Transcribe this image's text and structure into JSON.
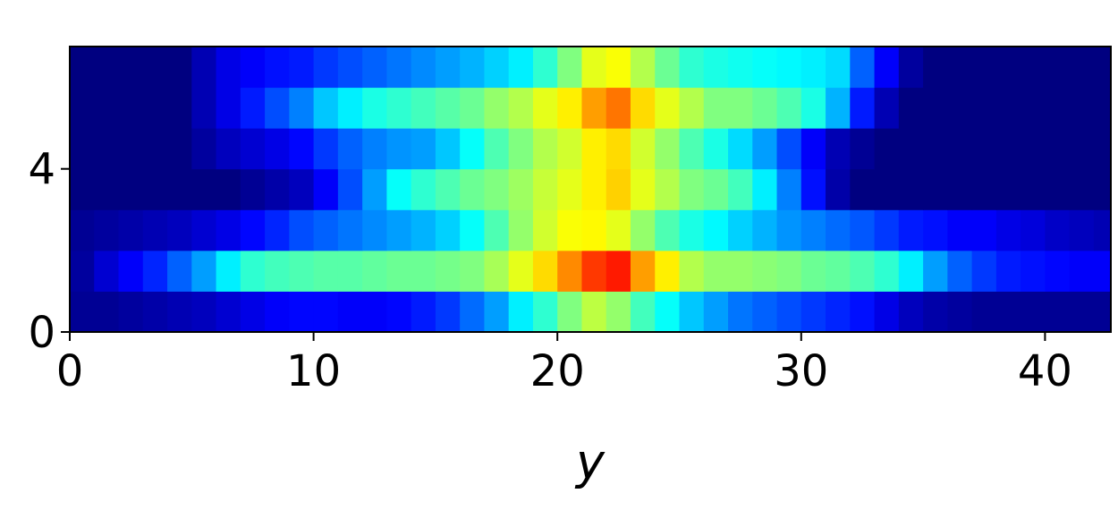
{
  "chart_data": {
    "type": "heatmap",
    "colormap": "jet",
    "clim": [
      0,
      1
    ],
    "xlabel": "y",
    "xlim": [
      0,
      42.7
    ],
    "ylim": [
      0,
      7
    ],
    "xticks": [
      0,
      10,
      20,
      30,
      40
    ],
    "yticks": [
      0,
      4
    ],
    "z": [
      [
        0.02,
        0.02,
        0.03,
        0.04,
        0.05,
        0.06,
        0.08,
        0.1,
        0.12,
        0.13,
        0.13,
        0.12,
        0.12,
        0.13,
        0.15,
        0.18,
        0.23,
        0.28,
        0.36,
        0.42,
        0.5,
        0.56,
        0.52,
        0.44,
        0.38,
        0.32,
        0.28,
        0.24,
        0.22,
        0.2,
        0.18,
        0.16,
        0.14,
        0.1,
        0.06,
        0.04,
        0.03,
        0.02,
        0.02,
        0.02,
        0.02,
        0.02,
        0.02
      ],
      [
        0.03,
        0.08,
        0.12,
        0.16,
        0.22,
        0.28,
        0.36,
        0.42,
        0.44,
        0.45,
        0.46,
        0.46,
        0.47,
        0.48,
        0.48,
        0.49,
        0.5,
        0.54,
        0.6,
        0.66,
        0.74,
        0.82,
        0.85,
        0.72,
        0.64,
        0.55,
        0.52,
        0.52,
        0.51,
        0.5,
        0.48,
        0.47,
        0.45,
        0.42,
        0.36,
        0.28,
        0.22,
        0.18,
        0.15,
        0.14,
        0.13,
        0.12,
        0.12
      ],
      [
        0.02,
        0.03,
        0.04,
        0.05,
        0.06,
        0.08,
        0.1,
        0.13,
        0.16,
        0.2,
        0.22,
        0.24,
        0.26,
        0.28,
        0.3,
        0.33,
        0.38,
        0.45,
        0.52,
        0.58,
        0.62,
        0.63,
        0.6,
        0.52,
        0.45,
        0.4,
        0.37,
        0.33,
        0.3,
        0.27,
        0.25,
        0.23,
        0.21,
        0.18,
        0.15,
        0.14,
        0.12,
        0.12,
        0.1,
        0.09,
        0.07,
        0.06,
        0.05
      ],
      [
        0,
        0,
        0,
        0,
        0,
        0,
        0,
        0.02,
        0.04,
        0.06,
        0.12,
        0.2,
        0.28,
        0.38,
        0.42,
        0.45,
        0.48,
        0.5,
        0.53,
        0.57,
        0.6,
        0.64,
        0.67,
        0.6,
        0.55,
        0.5,
        0.48,
        0.44,
        0.36,
        0.25,
        0.14,
        0.04,
        0,
        0,
        0,
        0,
        0,
        0,
        0,
        0,
        0,
        0,
        0
      ],
      [
        0,
        0,
        0,
        0,
        0,
        0.03,
        0.06,
        0.08,
        0.1,
        0.13,
        0.18,
        0.22,
        0.25,
        0.27,
        0.28,
        0.32,
        0.38,
        0.45,
        0.5,
        0.55,
        0.58,
        0.64,
        0.66,
        0.58,
        0.52,
        0.45,
        0.4,
        0.34,
        0.28,
        0.2,
        0.12,
        0.05,
        0.02,
        0,
        0,
        0,
        0,
        0,
        0,
        0,
        0,
        0,
        0
      ],
      [
        0,
        0,
        0,
        0,
        0,
        0.05,
        0.1,
        0.15,
        0.2,
        0.25,
        0.32,
        0.36,
        0.4,
        0.42,
        0.44,
        0.46,
        0.48,
        0.52,
        0.55,
        0.6,
        0.64,
        0.72,
        0.76,
        0.66,
        0.6,
        0.55,
        0.5,
        0.5,
        0.48,
        0.45,
        0.4,
        0.3,
        0.15,
        0.05,
        0,
        0,
        0,
        0,
        0,
        0,
        0,
        0,
        0
      ],
      [
        0,
        0,
        0,
        0,
        0,
        0.05,
        0.1,
        0.12,
        0.14,
        0.15,
        0.18,
        0.2,
        0.22,
        0.24,
        0.26,
        0.28,
        0.3,
        0.33,
        0.36,
        0.42,
        0.5,
        0.6,
        0.62,
        0.55,
        0.48,
        0.42,
        0.4,
        0.39,
        0.38,
        0.37,
        0.36,
        0.34,
        0.22,
        0.12,
        0.03,
        0,
        0,
        0,
        0,
        0,
        0,
        0,
        0
      ]
    ]
  }
}
